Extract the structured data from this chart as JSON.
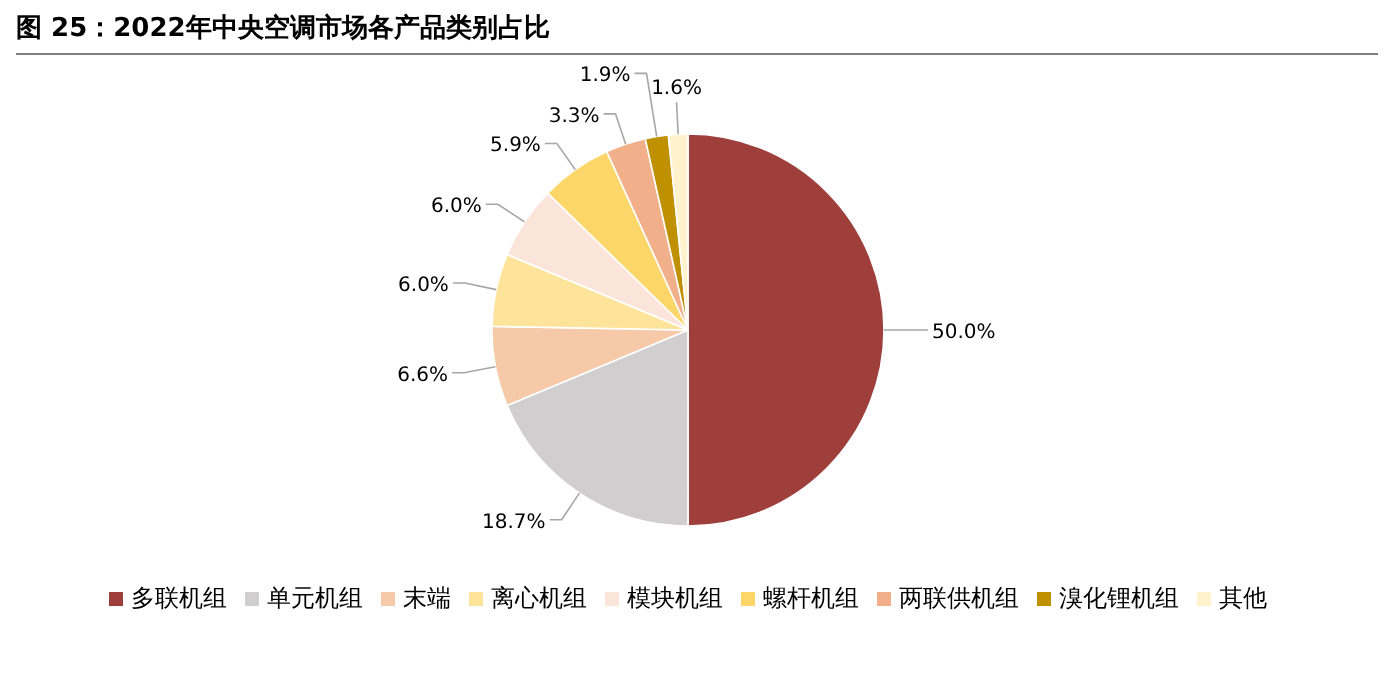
{
  "chart_data": {
    "type": "pie",
    "title": "图 25：2022年中央空调市场各产品类别占比",
    "categories": [
      "多联机组",
      "单元机组",
      "末端",
      "离心机组",
      "模块机组",
      "螺杆机组",
      "两联供机组",
      "溴化锂机组",
      "其他"
    ],
    "values": [
      50.0,
      18.7,
      6.6,
      6.0,
      6.0,
      5.9,
      3.3,
      1.9,
      1.6
    ],
    "value_labels": [
      "50.0%",
      "18.7%",
      "6.6%",
      "6.0%",
      "6.0%",
      "5.9%",
      "3.3%",
      "1.9%",
      "1.6%"
    ],
    "colors": [
      "#9e3f3c",
      "#d0cece",
      "#f6c9a8",
      "#fde49a",
      "#fbe4da",
      "#fdd66a",
      "#f2b08a",
      "#bf9000",
      "#fff2cc"
    ],
    "legend": "bottom"
  }
}
